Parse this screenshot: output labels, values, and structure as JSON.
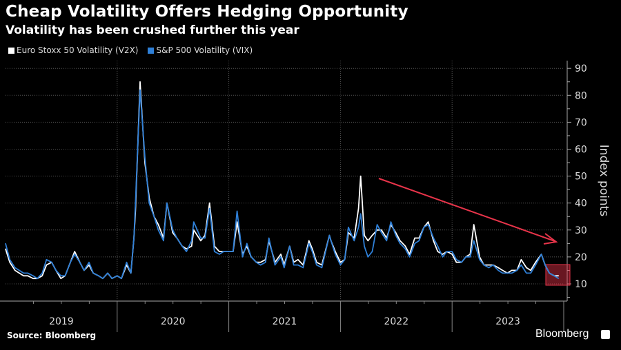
{
  "chart_data": {
    "type": "line",
    "title": "Cheap Volatility Offers Hedging Opportunity",
    "subtitle": "Volatility has been crushed further this year",
    "ylabel": "Index points",
    "xlabel": "",
    "source": "Source: Bloomberg",
    "brand": "Bloomberg",
    "ylim": [
      3.5,
      92
    ],
    "yticks": [
      10,
      20,
      30,
      40,
      50,
      60,
      70,
      80,
      90
    ],
    "xlim": [
      "2019-01-01",
      "2024-01-01"
    ],
    "xticks": [
      "2019",
      "2020",
      "2021",
      "2022",
      "2023"
    ],
    "grid": true,
    "legend_position": "top-left",
    "colors": {
      "V2X": "#ffffff",
      "VIX": "#2f80d8",
      "annotation": "#e8344a"
    },
    "annotations": [
      "downward-trend-arrow",
      "highlight-box-late-2023"
    ],
    "series": [
      {
        "name": "Euro Stoxx 50 Volatility (V2X)",
        "color": "#ffffff",
        "points": [
          [
            "2019-01-01",
            23
          ],
          [
            "2019-01-15",
            18
          ],
          [
            "2019-02-01",
            15
          ],
          [
            "2019-02-15",
            14
          ],
          [
            "2019-03-01",
            13
          ],
          [
            "2019-03-15",
            13
          ],
          [
            "2019-04-01",
            12
          ],
          [
            "2019-04-15",
            12
          ],
          [
            "2019-05-01",
            13
          ],
          [
            "2019-05-15",
            17
          ],
          [
            "2019-06-01",
            18
          ],
          [
            "2019-06-15",
            15
          ],
          [
            "2019-07-01",
            12
          ],
          [
            "2019-07-15",
            13
          ],
          [
            "2019-08-01",
            18
          ],
          [
            "2019-08-15",
            22
          ],
          [
            "2019-09-01",
            18
          ],
          [
            "2019-09-15",
            15
          ],
          [
            "2019-10-01",
            17
          ],
          [
            "2019-10-15",
            14
          ],
          [
            "2019-11-01",
            13
          ],
          [
            "2019-11-15",
            12
          ],
          [
            "2019-12-01",
            14
          ],
          [
            "2019-12-15",
            12
          ],
          [
            "2020-01-01",
            13
          ],
          [
            "2020-01-15",
            12
          ],
          [
            "2020-02-01",
            17
          ],
          [
            "2020-02-15",
            14
          ],
          [
            "2020-02-25",
            27
          ],
          [
            "2020-03-01",
            37
          ],
          [
            "2020-03-16",
            85
          ],
          [
            "2020-04-01",
            55
          ],
          [
            "2020-04-15",
            42
          ],
          [
            "2020-05-01",
            35
          ],
          [
            "2020-05-15",
            32
          ],
          [
            "2020-06-01",
            27
          ],
          [
            "2020-06-12",
            40
          ],
          [
            "2020-07-01",
            29
          ],
          [
            "2020-07-15",
            27
          ],
          [
            "2020-08-01",
            24
          ],
          [
            "2020-08-15",
            23
          ],
          [
            "2020-09-01",
            24
          ],
          [
            "2020-09-08",
            30
          ],
          [
            "2020-10-01",
            26
          ],
          [
            "2020-10-15",
            28
          ],
          [
            "2020-10-30",
            40
          ],
          [
            "2020-11-15",
            24
          ],
          [
            "2020-12-01",
            22
          ],
          [
            "2020-12-15",
            22
          ],
          [
            "2021-01-01",
            22
          ],
          [
            "2021-01-15",
            22
          ],
          [
            "2021-01-28",
            33
          ],
          [
            "2021-02-15",
            21
          ],
          [
            "2021-03-01",
            24
          ],
          [
            "2021-03-15",
            20
          ],
          [
            "2021-04-01",
            18
          ],
          [
            "2021-04-15",
            18
          ],
          [
            "2021-05-01",
            19
          ],
          [
            "2021-05-12",
            26
          ],
          [
            "2021-06-01",
            18
          ],
          [
            "2021-06-20",
            21
          ],
          [
            "2021-07-01",
            17
          ],
          [
            "2021-07-19",
            24
          ],
          [
            "2021-08-01",
            18
          ],
          [
            "2021-08-15",
            19
          ],
          [
            "2021-09-01",
            17
          ],
          [
            "2021-09-20",
            26
          ],
          [
            "2021-10-01",
            23
          ],
          [
            "2021-10-15",
            18
          ],
          [
            "2021-11-01",
            17
          ],
          [
            "2021-11-26",
            28
          ],
          [
            "2021-12-01",
            26
          ],
          [
            "2021-12-15",
            22
          ],
          [
            "2022-01-01",
            18
          ],
          [
            "2022-01-15",
            19
          ],
          [
            "2022-01-27",
            29
          ],
          [
            "2022-02-15",
            27
          ],
          [
            "2022-03-01",
            38
          ],
          [
            "2022-03-08",
            50
          ],
          [
            "2022-03-20",
            28
          ],
          [
            "2022-04-01",
            26
          ],
          [
            "2022-04-15",
            28
          ],
          [
            "2022-05-01",
            30
          ],
          [
            "2022-05-15",
            30
          ],
          [
            "2022-06-01",
            27
          ],
          [
            "2022-06-15",
            32
          ],
          [
            "2022-07-01",
            29
          ],
          [
            "2022-07-15",
            26
          ],
          [
            "2022-08-01",
            24
          ],
          [
            "2022-08-15",
            21
          ],
          [
            "2022-09-01",
            27
          ],
          [
            "2022-09-15",
            27
          ],
          [
            "2022-10-01",
            31
          ],
          [
            "2022-10-15",
            33
          ],
          [
            "2022-11-01",
            26
          ],
          [
            "2022-11-15",
            22
          ],
          [
            "2022-12-01",
            21
          ],
          [
            "2022-12-15",
            22
          ],
          [
            "2023-01-01",
            21
          ],
          [
            "2023-01-15",
            18
          ],
          [
            "2023-02-01",
            18
          ],
          [
            "2023-02-15",
            20
          ],
          [
            "2023-03-01",
            21
          ],
          [
            "2023-03-13",
            32
          ],
          [
            "2023-04-01",
            20
          ],
          [
            "2023-04-15",
            17
          ],
          [
            "2023-05-01",
            17
          ],
          [
            "2023-05-15",
            17
          ],
          [
            "2023-06-01",
            16
          ],
          [
            "2023-06-15",
            15
          ],
          [
            "2023-07-01",
            14
          ],
          [
            "2023-07-15",
            15
          ],
          [
            "2023-08-01",
            15
          ],
          [
            "2023-08-15",
            19
          ],
          [
            "2023-09-01",
            16
          ],
          [
            "2023-09-15",
            15
          ],
          [
            "2023-10-01",
            18
          ],
          [
            "2023-10-20",
            21
          ],
          [
            "2023-11-01",
            17
          ],
          [
            "2023-11-15",
            14
          ],
          [
            "2023-12-01",
            13
          ],
          [
            "2023-12-15",
            13
          ]
        ]
      },
      {
        "name": "S&P 500 Volatility (VIX)",
        "color": "#2f80d8",
        "points": [
          [
            "2019-01-01",
            25
          ],
          [
            "2019-01-15",
            19
          ],
          [
            "2019-02-01",
            16
          ],
          [
            "2019-02-15",
            15
          ],
          [
            "2019-03-01",
            14
          ],
          [
            "2019-03-15",
            14
          ],
          [
            "2019-04-01",
            13
          ],
          [
            "2019-04-15",
            12
          ],
          [
            "2019-05-01",
            14
          ],
          [
            "2019-05-15",
            19
          ],
          [
            "2019-06-01",
            18
          ],
          [
            "2019-06-15",
            15
          ],
          [
            "2019-07-01",
            13
          ],
          [
            "2019-07-15",
            13
          ],
          [
            "2019-08-01",
            18
          ],
          [
            "2019-08-15",
            21
          ],
          [
            "2019-09-01",
            18
          ],
          [
            "2019-09-15",
            15
          ],
          [
            "2019-10-01",
            18
          ],
          [
            "2019-10-15",
            14
          ],
          [
            "2019-11-01",
            13
          ],
          [
            "2019-11-15",
            12
          ],
          [
            "2019-12-01",
            14
          ],
          [
            "2019-12-15",
            12
          ],
          [
            "2020-01-01",
            13
          ],
          [
            "2020-01-15",
            12
          ],
          [
            "2020-02-01",
            18
          ],
          [
            "2020-02-15",
            14
          ],
          [
            "2020-02-25",
            27
          ],
          [
            "2020-03-01",
            40
          ],
          [
            "2020-03-16",
            82
          ],
          [
            "2020-04-01",
            57
          ],
          [
            "2020-04-15",
            40
          ],
          [
            "2020-05-01",
            35
          ],
          [
            "2020-05-15",
            30
          ],
          [
            "2020-06-01",
            26
          ],
          [
            "2020-06-12",
            40
          ],
          [
            "2020-07-01",
            30
          ],
          [
            "2020-07-15",
            27
          ],
          [
            "2020-08-01",
            24
          ],
          [
            "2020-08-15",
            22
          ],
          [
            "2020-09-01",
            26
          ],
          [
            "2020-09-08",
            33
          ],
          [
            "2020-10-01",
            27
          ],
          [
            "2020-10-15",
            27
          ],
          [
            "2020-10-30",
            38
          ],
          [
            "2020-11-15",
            22
          ],
          [
            "2020-12-01",
            21
          ],
          [
            "2020-12-15",
            22
          ],
          [
            "2021-01-01",
            22
          ],
          [
            "2021-01-15",
            22
          ],
          [
            "2021-01-28",
            37
          ],
          [
            "2021-02-15",
            20
          ],
          [
            "2021-03-01",
            25
          ],
          [
            "2021-03-15",
            20
          ],
          [
            "2021-04-01",
            18
          ],
          [
            "2021-04-15",
            17
          ],
          [
            "2021-05-01",
            18
          ],
          [
            "2021-05-12",
            27
          ],
          [
            "2021-06-01",
            17
          ],
          [
            "2021-06-20",
            20
          ],
          [
            "2021-07-01",
            16
          ],
          [
            "2021-07-19",
            24
          ],
          [
            "2021-08-01",
            17
          ],
          [
            "2021-08-15",
            17
          ],
          [
            "2021-09-01",
            16
          ],
          [
            "2021-09-20",
            25
          ],
          [
            "2021-10-01",
            22
          ],
          [
            "2021-10-15",
            17
          ],
          [
            "2021-11-01",
            16
          ],
          [
            "2021-11-26",
            28
          ],
          [
            "2021-12-01",
            26
          ],
          [
            "2021-12-15",
            21
          ],
          [
            "2022-01-01",
            17
          ],
          [
            "2022-01-15",
            19
          ],
          [
            "2022-01-27",
            31
          ],
          [
            "2022-02-15",
            26
          ],
          [
            "2022-03-01",
            31
          ],
          [
            "2022-03-08",
            36
          ],
          [
            "2022-03-20",
            24
          ],
          [
            "2022-04-01",
            20
          ],
          [
            "2022-04-15",
            22
          ],
          [
            "2022-05-01",
            32
          ],
          [
            "2022-05-15",
            29
          ],
          [
            "2022-06-01",
            26
          ],
          [
            "2022-06-15",
            33
          ],
          [
            "2022-07-01",
            28
          ],
          [
            "2022-07-15",
            25
          ],
          [
            "2022-08-01",
            23
          ],
          [
            "2022-08-15",
            20
          ],
          [
            "2022-09-01",
            25
          ],
          [
            "2022-09-15",
            26
          ],
          [
            "2022-10-01",
            31
          ],
          [
            "2022-10-15",
            32
          ],
          [
            "2022-11-01",
            27
          ],
          [
            "2022-11-15",
            24
          ],
          [
            "2022-12-01",
            20
          ],
          [
            "2022-12-15",
            22
          ],
          [
            "2023-01-01",
            22
          ],
          [
            "2023-01-15",
            19
          ],
          [
            "2023-02-01",
            18
          ],
          [
            "2023-02-15",
            20
          ],
          [
            "2023-03-01",
            20
          ],
          [
            "2023-03-13",
            26
          ],
          [
            "2023-04-01",
            19
          ],
          [
            "2023-04-15",
            17
          ],
          [
            "2023-05-01",
            16
          ],
          [
            "2023-05-15",
            17
          ],
          [
            "2023-06-01",
            15
          ],
          [
            "2023-06-15",
            14
          ],
          [
            "2023-07-01",
            14
          ],
          [
            "2023-07-15",
            14
          ],
          [
            "2023-08-01",
            15
          ],
          [
            "2023-08-15",
            17
          ],
          [
            "2023-09-01",
            14
          ],
          [
            "2023-09-15",
            14
          ],
          [
            "2023-10-01",
            17
          ],
          [
            "2023-10-20",
            21
          ],
          [
            "2023-11-01",
            17
          ],
          [
            "2023-11-15",
            14
          ],
          [
            "2023-12-01",
            13
          ],
          [
            "2023-12-15",
            12
          ]
        ]
      }
    ]
  }
}
